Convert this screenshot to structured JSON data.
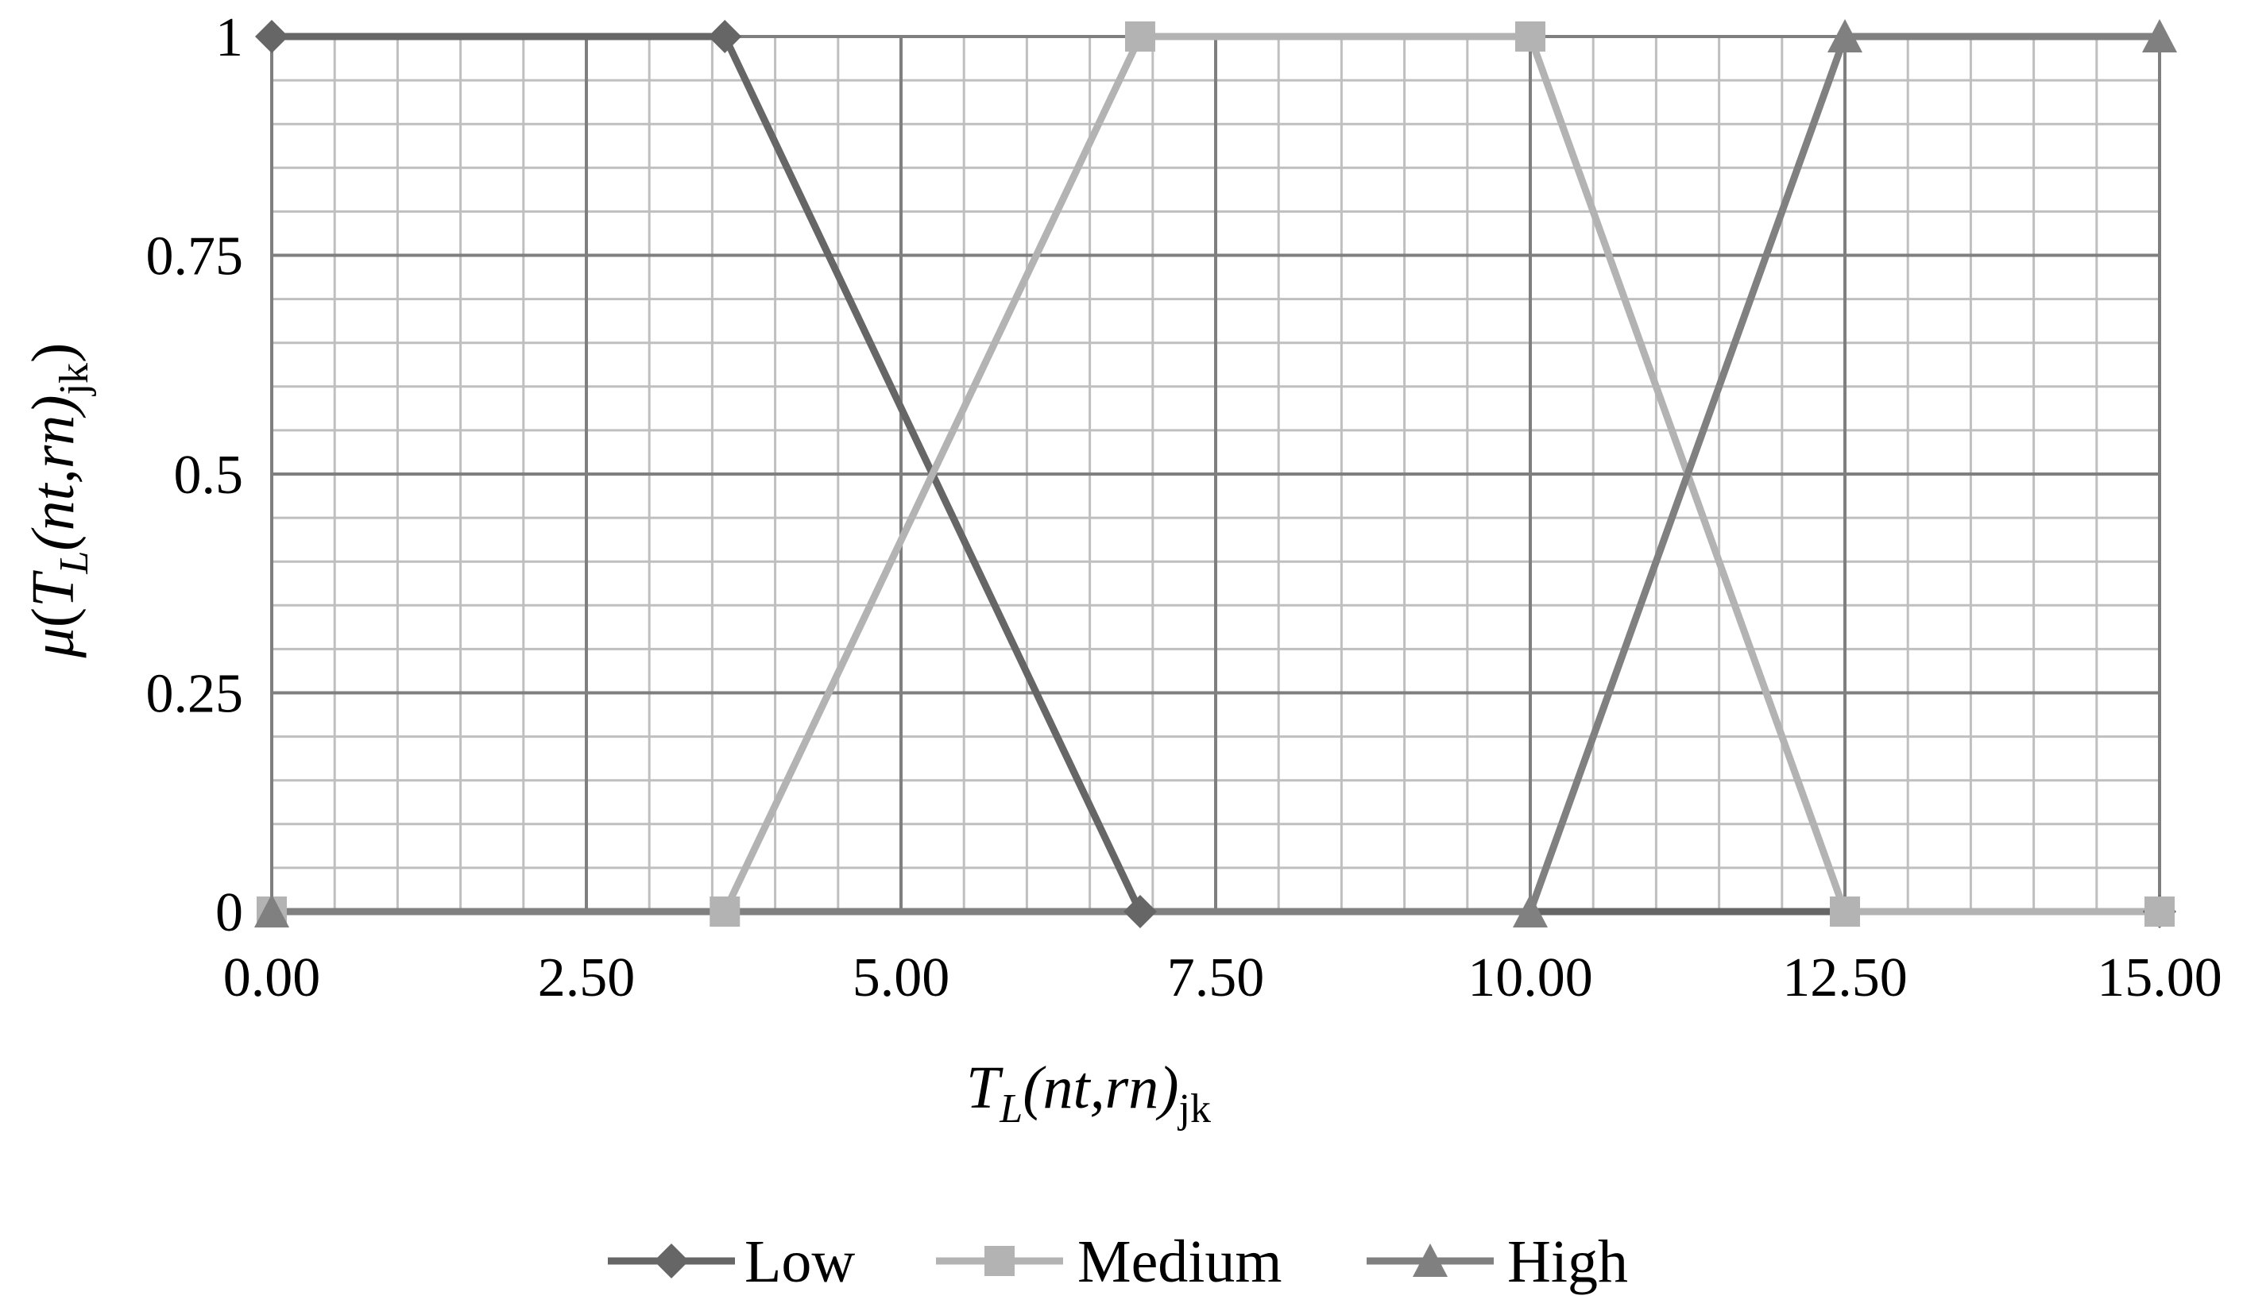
{
  "chart_data": {
    "type": "line",
    "x_tick_labels": [
      "0.00",
      "2.50",
      "5.00",
      "7.50",
      "10.00",
      "12.50",
      "15.00"
    ],
    "y_tick_labels": [
      "0",
      "0.25",
      "0.5",
      "0.75",
      "1"
    ],
    "xlim": [
      0,
      15
    ],
    "ylim": [
      0,
      1
    ],
    "grid": true,
    "legend_position": "bottom",
    "xlabel": {
      "base": "T",
      "sub": "L",
      "rest": "(nt,rn)",
      "sub2": "jk"
    },
    "ylabel": {
      "mu": "μ",
      "open": "(",
      "base": "T",
      "sub": "L",
      "rest": "(nt,rn)",
      "sub2": "jk",
      "close": ")"
    },
    "series": [
      {
        "name": "Low",
        "marker": "diamond",
        "color": "#666666",
        "x": [
          0,
          3.6,
          6.9,
          15
        ],
        "y": [
          1,
          1,
          0,
          0
        ]
      },
      {
        "name": "Medium",
        "marker": "square",
        "color": "#b3b3b3",
        "x": [
          0,
          3.6,
          6.9,
          10,
          12.5,
          15
        ],
        "y": [
          0,
          0,
          1,
          1,
          0,
          0
        ]
      },
      {
        "name": "High",
        "marker": "triangle",
        "color": "#808080",
        "x": [
          0,
          10,
          12.5,
          15
        ],
        "y": [
          0,
          0,
          1,
          1
        ]
      }
    ]
  }
}
